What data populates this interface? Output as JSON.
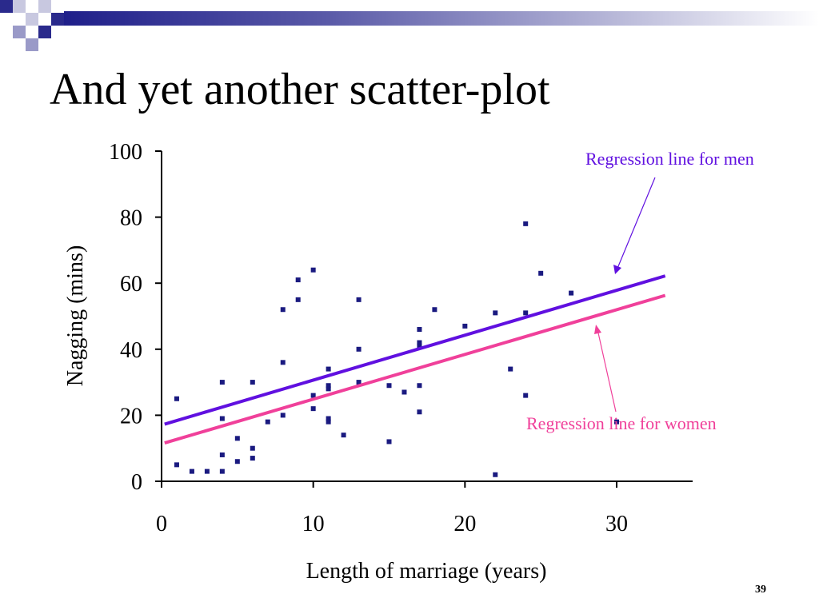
{
  "slide": {
    "title": "And yet another scatter-plot",
    "page_number": "39"
  },
  "colors": {
    "men": "#6010e0",
    "women": "#f0409a",
    "points": "#1a1a80",
    "axis": "#000000",
    "deco_dark": "#2a2a8c",
    "deco_light": "#9a9ac8"
  },
  "chart_data": {
    "type": "scatter",
    "xlabel": "Length of marriage (years)",
    "ylabel": "Nagging (mins)",
    "xlim": [
      0,
      35
    ],
    "ylim": [
      0,
      100
    ],
    "x_ticks": [
      0,
      10,
      20,
      30
    ],
    "y_ticks": [
      0,
      20,
      40,
      60,
      80,
      100
    ],
    "grid": false,
    "points": [
      {
        "x": 1,
        "y": 25
      },
      {
        "x": 1,
        "y": 5
      },
      {
        "x": 2,
        "y": 3
      },
      {
        "x": 3,
        "y": 3
      },
      {
        "x": 4,
        "y": 30
      },
      {
        "x": 4,
        "y": 19
      },
      {
        "x": 4,
        "y": 8
      },
      {
        "x": 4,
        "y": 3
      },
      {
        "x": 5,
        "y": 13
      },
      {
        "x": 5,
        "y": 6
      },
      {
        "x": 6,
        "y": 30
      },
      {
        "x": 6,
        "y": 10
      },
      {
        "x": 6,
        "y": 7
      },
      {
        "x": 7,
        "y": 18
      },
      {
        "x": 8,
        "y": 52
      },
      {
        "x": 8,
        "y": 36
      },
      {
        "x": 8,
        "y": 20
      },
      {
        "x": 9,
        "y": 61
      },
      {
        "x": 9,
        "y": 55
      },
      {
        "x": 10,
        "y": 64
      },
      {
        "x": 10,
        "y": 26
      },
      {
        "x": 10,
        "y": 22
      },
      {
        "x": 11,
        "y": 34
      },
      {
        "x": 11,
        "y": 29
      },
      {
        "x": 11,
        "y": 28
      },
      {
        "x": 11,
        "y": 19
      },
      {
        "x": 11,
        "y": 18
      },
      {
        "x": 12,
        "y": 14
      },
      {
        "x": 13,
        "y": 55
      },
      {
        "x": 13,
        "y": 40
      },
      {
        "x": 13,
        "y": 30
      },
      {
        "x": 15,
        "y": 29
      },
      {
        "x": 15,
        "y": 12
      },
      {
        "x": 16,
        "y": 27
      },
      {
        "x": 17,
        "y": 46
      },
      {
        "x": 17,
        "y": 42
      },
      {
        "x": 17,
        "y": 41
      },
      {
        "x": 17,
        "y": 29
      },
      {
        "x": 17,
        "y": 21
      },
      {
        "x": 18,
        "y": 52
      },
      {
        "x": 20,
        "y": 47
      },
      {
        "x": 22,
        "y": 51
      },
      {
        "x": 22,
        "y": 2
      },
      {
        "x": 23,
        "y": 34
      },
      {
        "x": 24,
        "y": 78
      },
      {
        "x": 24,
        "y": 51
      },
      {
        "x": 24,
        "y": 26
      },
      {
        "x": 25,
        "y": 63
      },
      {
        "x": 27,
        "y": 57
      },
      {
        "x": 30,
        "y": 18
      }
    ],
    "regression_lines": [
      {
        "name": "Regression line for men",
        "x": [
          0.2,
          33.2
        ],
        "y": [
          17.3,
          62.2
        ]
      },
      {
        "name": "Regression line for women",
        "x": [
          0.2,
          33.2
        ],
        "y": [
          11.6,
          56.3
        ]
      }
    ]
  }
}
